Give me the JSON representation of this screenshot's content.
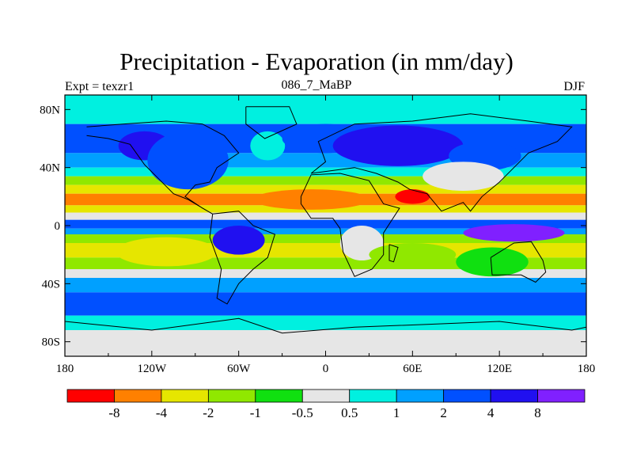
{
  "title": "Precipitation - Evaporation (in mm/day)",
  "subtitle_left": "Expt = texzr1",
  "subtitle_center": "086_7_MaBP",
  "subtitle_right": "DJF",
  "chart_data": {
    "type": "heatmap",
    "title": "Precipitation - Evaporation (in mm/day)",
    "x_ticks": [
      "180",
      "120W",
      "60W",
      "0",
      "60E",
      "120E",
      "180"
    ],
    "x_tick_values": [
      -180,
      -120,
      -60,
      0,
      60,
      120,
      180
    ],
    "y_ticks": [
      "80N",
      "40N",
      "0",
      "40S",
      "80S"
    ],
    "y_tick_values": [
      80,
      40,
      0,
      -40,
      -80
    ],
    "xlim": [
      -180,
      180
    ],
    "ylim": [
      -90,
      90
    ],
    "colorbar_labels": [
      "-8",
      "-4",
      "-2",
      "-1",
      "-0.5",
      "0.5",
      "1",
      "2",
      "4",
      "8"
    ],
    "colorbar_levels": [
      -8,
      -4,
      -2,
      -1,
      -0.5,
      0.5,
      1,
      2,
      4,
      8
    ],
    "colorbar_colors": [
      "#ff0000",
      "#ff8000",
      "#e6e600",
      "#90e800",
      "#10e010",
      "#e6e6e6",
      "#00f0e0",
      "#00a0ff",
      "#0050ff",
      "#2010f0",
      "#8020ff"
    ]
  }
}
